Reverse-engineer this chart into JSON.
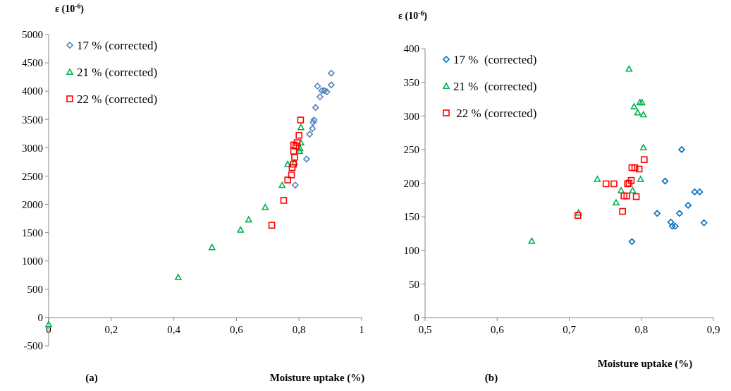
{
  "chart_data": [
    {
      "type": "scatter",
      "ylabel": "ε (10$^{-6}$)",
      "xlabel": "Moisture uptake (%)",
      "annotations": [
        "(a)"
      ],
      "xlim": [
        0,
        1
      ],
      "ylim": [
        -500,
        5000
      ],
      "xticks": [
        0,
        {
          "value": 0.2,
          "label": "0,2"
        },
        {
          "value": 0.4,
          "label": "0,4"
        },
        {
          "value": 0.6,
          "label": "0,6"
        },
        {
          "value": 0.8,
          "label": "0,8"
        },
        1
      ],
      "yticks": [
        -500,
        0,
        500,
        1000,
        1500,
        2000,
        2500,
        3000,
        3500,
        4000,
        4500,
        5000
      ],
      "grid": false,
      "legend": "top left",
      "series": [
        {
          "name": "17 % (corrected)",
          "color": "#4f81bd",
          "marker": "diamond",
          "x": [
            0.903,
            0.903,
            0.859,
            0.873,
            0.881,
            0.889,
            0.867,
            0.853,
            0.848,
            0.845,
            0.843,
            0.834,
            0.824,
            0.788
          ],
          "values": [
            4320,
            4110,
            4090,
            4010,
            4010,
            3990,
            3900,
            3710,
            3490,
            3450,
            3340,
            3240,
            2800,
            2340
          ]
        },
        {
          "name": "21 % (corrected)",
          "color": "#00b050",
          "marker": "triangle",
          "x": [
            0,
            0.414,
            0.522,
            0.613,
            0.639,
            0.692,
            0.746,
            0.764,
            0.786,
            0.806,
            0.806,
            0.802,
            0.803
          ],
          "values": [
            -120,
            710,
            1240,
            1550,
            1730,
            1950,
            2340,
            2710,
            2740,
            3360,
            3090,
            2940,
            2990
          ]
        },
        {
          "name": "22 % (corrected)",
          "color": "#ff0000",
          "marker": "square",
          "x": [
            0.713,
            0.751,
            0.764,
            0.776,
            0.778,
            0.782,
            0.786,
            0.783,
            0.783,
            0.794,
            0.8,
            0.805,
            0.79
          ],
          "values": [
            1630,
            2070,
            2430,
            2520,
            2650,
            2710,
            2830,
            2940,
            3050,
            3090,
            3220,
            3490,
            3030
          ]
        }
      ]
    },
    {
      "type": "scatter",
      "ylabel": "ε (10$^{-6}$)",
      "xlabel": "Moisture uptake (%)",
      "annotations": [
        "(b)"
      ],
      "xlim": [
        0.5,
        0.9
      ],
      "ylim": [
        0,
        400
      ],
      "xticks": [
        {
          "value": 0.5,
          "label": "0,5"
        },
        {
          "value": 0.6,
          "label": "0,6"
        },
        {
          "value": 0.7,
          "label": "0,7"
        },
        {
          "value": 0.8,
          "label": "0,8"
        },
        {
          "value": 0.9,
          "label": "0,9"
        }
      ],
      "yticks": [
        0,
        50,
        100,
        150,
        200,
        250,
        300,
        350,
        400
      ],
      "grid": false,
      "legend": "top left",
      "series": [
        {
          "name": "17 %  (corrected)",
          "color": "#0070c0",
          "marker": "diamond",
          "x": [
            0.787,
            0.822,
            0.833,
            0.841,
            0.843,
            0.847,
            0.853,
            0.856,
            0.865,
            0.874,
            0.881,
            0.887
          ],
          "values": [
            113,
            155,
            203,
            142,
            136,
            136,
            155,
            250,
            167,
            187,
            187,
            141
          ]
        },
        {
          "name": "21 %  (corrected)",
          "color": "#00b050",
          "marker": "triangle",
          "x": [
            0.648,
            0.713,
            0.739,
            0.765,
            0.772,
            0.783,
            0.788,
            0.79,
            0.795,
            0.798,
            0.801,
            0.803,
            0.803,
            0.799
          ],
          "values": [
            114,
            156,
            206,
            171,
            189,
            370,
            189,
            314,
            305,
            320,
            320,
            302,
            253,
            206
          ]
        },
        {
          "name": " 22 % (corrected)",
          "color": "#ff0000",
          "marker": "square",
          "x": [
            0.712,
            0.751,
            0.762,
            0.774,
            0.776,
            0.78,
            0.781,
            0.783,
            0.786,
            0.787,
            0.791,
            0.793,
            0.797,
            0.804
          ],
          "values": [
            152,
            199,
            199,
            158,
            181,
            181,
            199,
            200,
            204,
            223,
            223,
            180,
            221,
            235
          ]
        }
      ]
    }
  ]
}
